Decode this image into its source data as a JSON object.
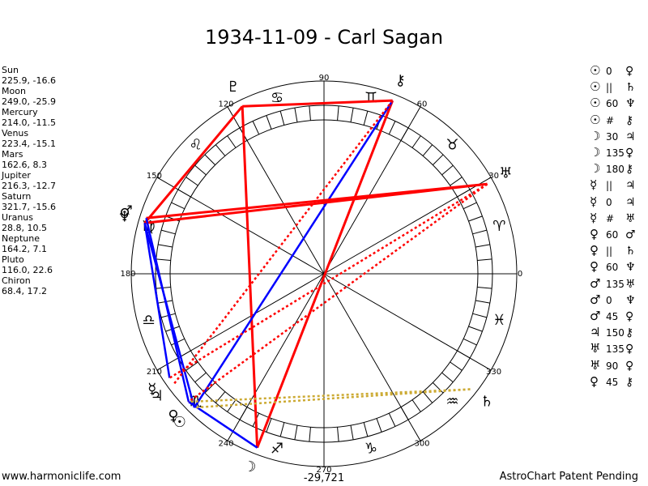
{
  "title": "1934-11-09 - Carl Sagan",
  "footer": {
    "site": "www.harmoniclife.com",
    "center_value": "-29,721",
    "patent": "AstroChart Patent Pending"
  },
  "planets": [
    {
      "name": "Sun",
      "coords": "225.9, -16.6",
      "glyph": "☉",
      "lon": 225.9
    },
    {
      "name": "Moon",
      "coords": "249.0, -25.9",
      "glyph": "☽",
      "lon": 249.0
    },
    {
      "name": "Mercury",
      "coords": "214.0, -11.5",
      "glyph": "☿",
      "lon": 214.0
    },
    {
      "name": "Venus",
      "coords": "223.4, -15.1",
      "glyph": "♀",
      "lon": 223.4
    },
    {
      "name": "Mars",
      "coords": "162.6, 8.3",
      "glyph": "♂",
      "lon": 162.6
    },
    {
      "name": "Jupiter",
      "coords": "216.3, -12.7",
      "glyph": "♃",
      "lon": 216.3
    },
    {
      "name": "Saturn",
      "coords": "321.7, -15.6",
      "glyph": "♄",
      "lon": 321.7
    },
    {
      "name": "Uranus",
      "coords": "28.8, 10.5",
      "glyph": "♅",
      "lon": 28.8
    },
    {
      "name": "Neptune",
      "coords": "164.2, 7.1",
      "glyph": "♆",
      "lon": 164.2
    },
    {
      "name": "Pluto",
      "coords": "116.0, 22.6",
      "glyph": "♇",
      "lon": 116.0
    },
    {
      "name": "Chiron",
      "coords": "68.4, 17.2",
      "glyph": "⚷",
      "lon": 68.4
    }
  ],
  "aspect_table": [
    {
      "p1": "☉",
      "mid": "0",
      "p2": "♀"
    },
    {
      "p1": "☉",
      "mid": "||",
      "p2": "♄"
    },
    {
      "p1": "☉",
      "mid": "60",
      "p2": "♆"
    },
    {
      "p1": "☉",
      "mid": "#",
      "p2": "⚷"
    },
    {
      "p1": "☽",
      "mid": "30",
      "p2": "♃"
    },
    {
      "p1": "☽",
      "mid": "135",
      "p2": "♀"
    },
    {
      "p1": "☽",
      "mid": "180",
      "p2": "⚷"
    },
    {
      "p1": "☿",
      "mid": "||",
      "p2": "♃"
    },
    {
      "p1": "☿",
      "mid": "0",
      "p2": "♃"
    },
    {
      "p1": "☿",
      "mid": "#",
      "p2": "♅"
    },
    {
      "p1": "♀",
      "mid": "60",
      "p2": "♂"
    },
    {
      "p1": "♀",
      "mid": "||",
      "p2": "♄"
    },
    {
      "p1": "♀",
      "mid": "60",
      "p2": "♆"
    },
    {
      "p1": "♂",
      "mid": "135",
      "p2": "♅"
    },
    {
      "p1": "♂",
      "mid": "0",
      "p2": "♆"
    },
    {
      "p1": "♂",
      "mid": "45",
      "p2": "♀"
    },
    {
      "p1": "♃",
      "mid": "150",
      "p2": "⚷"
    },
    {
      "p1": "♅",
      "mid": "135",
      "p2": "♀"
    },
    {
      "p1": "♅",
      "mid": "90",
      "p2": "♀"
    },
    {
      "p1": "♀",
      "mid": "45",
      "p2": "⚷"
    }
  ],
  "degree_labels": [
    "0",
    "30",
    "60",
    "90",
    "120",
    "150",
    "180",
    "210",
    "240",
    "270",
    "300",
    "330"
  ],
  "sign_glyphs": [
    "♈",
    "♉",
    "♊",
    "♋",
    "♌",
    "♍",
    "♎",
    "♏",
    "♐",
    "♑",
    "♒",
    "♓"
  ],
  "colors": {
    "hard": "#ff0000",
    "soft": "#0000ff",
    "minor": "#ccaa33",
    "ring": "#000000"
  },
  "aspect_lines": [
    {
      "a": "Pluto",
      "b": "Chiron",
      "style": "hard"
    },
    {
      "a": "Pluto",
      "b": "Neptune",
      "style": "hard"
    },
    {
      "a": "Pluto",
      "b": "Moon",
      "style": "hard"
    },
    {
      "a": "Chiron",
      "b": "Moon",
      "style": "hard"
    },
    {
      "a": "Chiron",
      "b": "Sun",
      "style": "soft"
    },
    {
      "a": "Neptune",
      "b": "Uranus",
      "style": "hard"
    },
    {
      "a": "Mars",
      "b": "Uranus",
      "style": "hard"
    },
    {
      "a": "Neptune",
      "b": "Sun",
      "style": "soft"
    },
    {
      "a": "Mars",
      "b": "Venus",
      "style": "soft"
    },
    {
      "a": "Neptune",
      "b": "Mercury",
      "style": "soft"
    },
    {
      "a": "Venus",
      "b": "Moon",
      "style": "soft"
    },
    {
      "a": "Uranus",
      "b": "Mercury",
      "style": "hard-dotted"
    },
    {
      "a": "Uranus",
      "b": "Venus",
      "style": "hard-dotted"
    },
    {
      "a": "Chiron",
      "b": "Jupiter",
      "style": "hard-dotted"
    },
    {
      "a": "Saturn",
      "b": "Sun",
      "style": "minor-dotted"
    },
    {
      "a": "Saturn",
      "b": "Venus",
      "style": "minor-dotted"
    }
  ]
}
